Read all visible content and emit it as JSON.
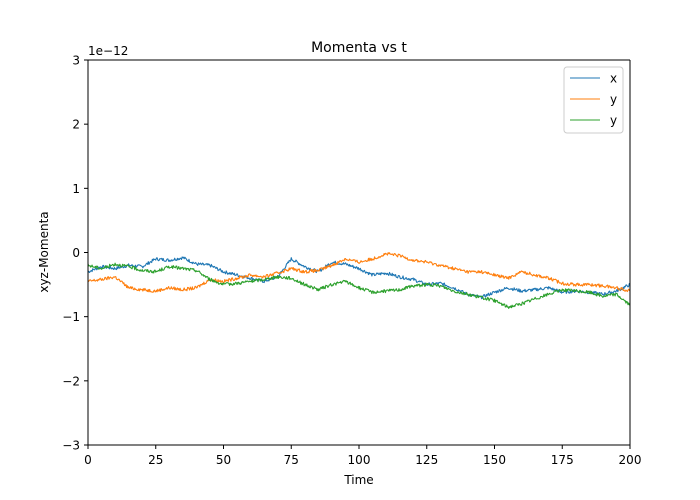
{
  "chart_data": {
    "type": "line",
    "title": "Momenta vs t",
    "xlabel": "Time",
    "ylabel": "xyz-Momenta",
    "offset_text": "1e−12",
    "xlim": [
      0,
      200
    ],
    "ylim": [
      -3,
      3
    ],
    "x_ticks": [
      0,
      25,
      50,
      75,
      100,
      125,
      150,
      175,
      200
    ],
    "x_tick_labels": [
      "0",
      "25",
      "50",
      "75",
      "100",
      "125",
      "150",
      "175",
      "200"
    ],
    "y_ticks": [
      -3,
      -2,
      -1,
      0,
      1,
      2,
      3
    ],
    "y_tick_labels": [
      "−3",
      "−2",
      "−1",
      "0",
      "1",
      "2",
      "3"
    ],
    "grid": false,
    "legend_position": "top-right",
    "x": [
      0,
      5,
      10,
      15,
      20,
      25,
      30,
      35,
      40,
      45,
      50,
      55,
      60,
      65,
      70,
      75,
      80,
      85,
      90,
      95,
      100,
      105,
      110,
      115,
      120,
      125,
      130,
      135,
      140,
      145,
      150,
      155,
      160,
      165,
      170,
      175,
      180,
      185,
      190,
      195,
      200
    ],
    "series": [
      {
        "name": "x",
        "color": "#1f77b4",
        "values": [
          -0.3,
          -0.22,
          -0.25,
          -0.2,
          -0.22,
          -0.1,
          -0.12,
          -0.08,
          -0.18,
          -0.2,
          -0.3,
          -0.35,
          -0.4,
          -0.45,
          -0.38,
          -0.1,
          -0.22,
          -0.3,
          -0.15,
          -0.18,
          -0.25,
          -0.35,
          -0.32,
          -0.38,
          -0.42,
          -0.5,
          -0.48,
          -0.55,
          -0.65,
          -0.7,
          -0.62,
          -0.55,
          -0.6,
          -0.58,
          -0.55,
          -0.62,
          -0.6,
          -0.62,
          -0.65,
          -0.6,
          -0.5
        ]
      },
      {
        "name": "y",
        "color": "#ff7f0e",
        "values": [
          -0.45,
          -0.42,
          -0.38,
          -0.55,
          -0.58,
          -0.6,
          -0.55,
          -0.58,
          -0.55,
          -0.42,
          -0.45,
          -0.4,
          -0.35,
          -0.38,
          -0.32,
          -0.25,
          -0.3,
          -0.28,
          -0.2,
          -0.1,
          -0.15,
          -0.1,
          -0.02,
          -0.05,
          -0.12,
          -0.15,
          -0.2,
          -0.25,
          -0.3,
          -0.3,
          -0.35,
          -0.4,
          -0.3,
          -0.35,
          -0.4,
          -0.48,
          -0.5,
          -0.5,
          -0.52,
          -0.55,
          -0.6
        ]
      },
      {
        "name": "y",
        "color": "#2ca02c",
        "values": [
          -0.2,
          -0.25,
          -0.18,
          -0.22,
          -0.28,
          -0.3,
          -0.22,
          -0.25,
          -0.28,
          -0.42,
          -0.5,
          -0.48,
          -0.45,
          -0.42,
          -0.38,
          -0.4,
          -0.5,
          -0.58,
          -0.5,
          -0.45,
          -0.55,
          -0.62,
          -0.6,
          -0.58,
          -0.52,
          -0.5,
          -0.52,
          -0.6,
          -0.65,
          -0.7,
          -0.75,
          -0.85,
          -0.8,
          -0.72,
          -0.65,
          -0.58,
          -0.6,
          -0.62,
          -0.68,
          -0.65,
          -0.82
        ]
      }
    ]
  }
}
